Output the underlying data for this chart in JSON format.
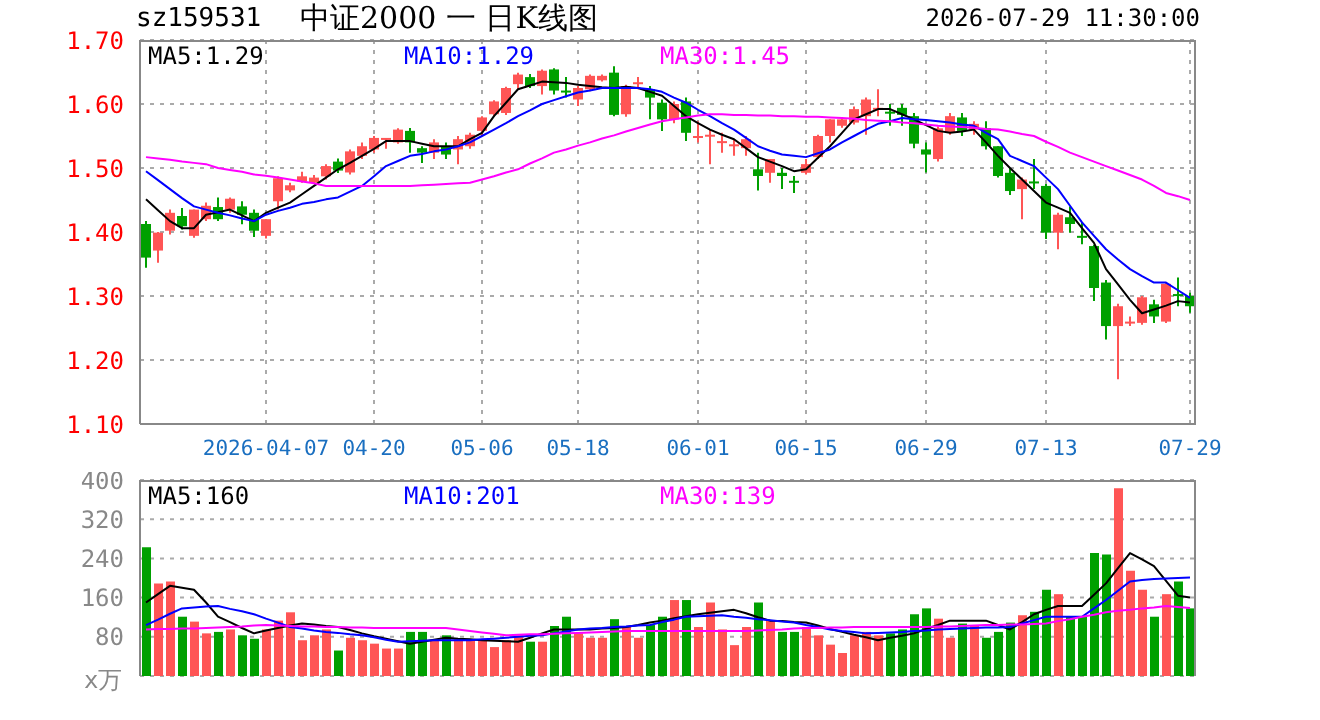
{
  "chart_data": [
    {
      "type": "candlestick",
      "title": "中证2000 一 日K线图",
      "subtitle": "sz159531",
      "annotations": [
        "2026-07-29 11:30:00"
      ],
      "categories": [
        null,
        null,
        null,
        null,
        null,
        null,
        null,
        null,
        null,
        null,
        "2026-04-07",
        null,
        null,
        null,
        null,
        null,
        null,
        null,
        null,
        "04-20",
        null,
        null,
        null,
        null,
        null,
        null,
        null,
        null,
        "05-06",
        null,
        null,
        null,
        null,
        null,
        null,
        null,
        "05-18",
        null,
        null,
        null,
        null,
        null,
        null,
        null,
        null,
        null,
        "06-01",
        null,
        null,
        null,
        null,
        null,
        null,
        null,
        null,
        "06-15",
        null,
        null,
        null,
        null,
        null,
        null,
        null,
        null,
        null,
        "06-29",
        null,
        null,
        null,
        null,
        null,
        null,
        null,
        null,
        null,
        "07-13",
        null,
        null,
        null,
        null,
        null,
        null,
        null,
        null,
        null,
        null,
        null,
        "07-29"
      ],
      "ohlc": [
        [
          1.4125,
          1.417,
          1.344,
          1.36
        ],
        [
          1.371,
          1.4,
          1.352,
          1.399
        ],
        [
          1.402,
          1.435,
          1.396,
          1.43
        ],
        [
          1.425,
          1.4375,
          1.404,
          1.409
        ],
        [
          1.394,
          1.435,
          1.391,
          1.435
        ],
        [
          1.42,
          1.446,
          1.417,
          1.441
        ],
        [
          1.439,
          1.454,
          1.417,
          1.42
        ],
        [
          1.435,
          1.454,
          1.43,
          1.452
        ],
        [
          1.44,
          1.448,
          1.412,
          1.427
        ],
        [
          1.43,
          1.435,
          1.392,
          1.402
        ],
        [
          1.394,
          1.42,
          1.39,
          1.42
        ],
        [
          1.448,
          1.487,
          1.435,
          1.484
        ],
        [
          1.465,
          1.477,
          1.462,
          1.473
        ],
        [
          1.479,
          1.494,
          1.477,
          1.487
        ],
        [
          1.477,
          1.489,
          1.475,
          1.485
        ],
        [
          1.487,
          1.506,
          1.482,
          1.503
        ],
        [
          1.51,
          1.515,
          1.492,
          1.496
        ],
        [
          1.493,
          1.529,
          1.49,
          1.526
        ],
        [
          1.519,
          1.54,
          1.514,
          1.534
        ],
        [
          1.529,
          1.55,
          1.524,
          1.547
        ],
        [
          1.545,
          1.547,
          1.53,
          1.547
        ],
        [
          1.54,
          1.562,
          1.538,
          1.56
        ],
        [
          1.558,
          1.5625,
          1.524,
          1.54
        ],
        [
          1.531,
          1.534,
          1.508,
          1.524
        ],
        [
          1.524,
          1.545,
          1.514,
          1.54
        ],
        [
          1.534,
          1.54,
          1.514,
          1.521
        ],
        [
          1.529,
          1.55,
          1.506,
          1.545
        ],
        [
          1.534,
          1.555,
          1.53,
          1.552
        ],
        [
          1.558,
          1.581,
          1.55,
          1.579
        ],
        [
          1.584,
          1.606,
          1.58,
          1.604
        ],
        [
          1.586,
          1.627,
          1.583,
          1.625
        ],
        [
          1.631,
          1.649,
          1.623,
          1.646
        ],
        [
          1.642,
          1.647,
          1.625,
          1.628
        ],
        [
          1.628,
          1.654,
          1.615,
          1.652
        ],
        [
          1.654,
          1.656,
          1.615,
          1.621
        ],
        [
          1.621,
          1.642,
          1.61,
          1.618
        ],
        [
          1.607,
          1.628,
          1.597,
          1.625
        ],
        [
          1.623,
          1.646,
          1.62,
          1.644
        ],
        [
          1.637,
          1.646,
          1.635,
          1.644
        ],
        [
          1.649,
          1.659,
          1.581,
          1.583
        ],
        [
          1.584,
          1.63,
          1.58,
          1.628
        ],
        [
          1.632,
          1.642,
          1.623,
          1.634
        ],
        [
          1.623,
          1.628,
          1.576,
          1.61
        ],
        [
          1.602,
          1.607,
          1.558,
          1.576
        ],
        [
          1.576,
          1.604,
          1.57,
          1.6
        ],
        [
          1.604,
          1.61,
          1.542,
          1.555
        ],
        [
          1.548,
          1.573,
          1.54,
          1.55
        ],
        [
          1.55,
          1.56,
          1.506,
          1.552
        ],
        [
          1.54,
          1.555,
          1.524,
          1.542
        ],
        [
          1.534,
          1.545,
          1.519,
          1.537
        ],
        [
          1.531,
          1.55,
          1.519,
          1.545
        ],
        [
          1.498,
          1.524,
          1.465,
          1.4875
        ],
        [
          1.4925,
          1.514,
          1.477,
          1.514
        ],
        [
          1.4925,
          1.5,
          1.467,
          1.4875
        ],
        [
          1.48,
          1.4875,
          1.461,
          1.477
        ],
        [
          1.4925,
          1.514,
          1.49,
          1.506
        ],
        [
          1.517,
          1.552,
          1.514,
          1.55
        ],
        [
          1.55,
          1.576,
          1.54,
          1.576
        ],
        [
          1.566,
          1.578,
          1.563,
          1.576
        ],
        [
          1.571,
          1.596,
          1.568,
          1.592
        ],
        [
          1.581,
          1.61,
          1.552,
          1.607
        ],
        [
          1.592,
          1.623,
          1.581,
          1.594
        ],
        [
          1.588,
          1.6,
          1.566,
          1.586
        ],
        [
          1.594,
          1.6,
          1.566,
          1.583
        ],
        [
          1.581,
          1.586,
          1.531,
          1.538
        ],
        [
          1.529,
          1.54,
          1.493,
          1.521
        ],
        [
          1.514,
          1.565,
          1.51,
          1.562
        ],
        [
          1.555,
          1.586,
          1.552,
          1.581
        ],
        [
          1.579,
          1.586,
          1.55,
          1.558
        ],
        [
          1.56,
          1.573,
          1.552,
          1.569
        ],
        [
          1.562,
          1.573,
          1.529,
          1.534
        ],
        [
          1.534,
          1.534,
          1.485,
          1.4875
        ],
        [
          1.4925,
          1.5,
          1.458,
          1.464
        ],
        [
          1.467,
          1.485,
          1.42,
          1.482
        ],
        [
          1.479,
          1.514,
          1.467,
          1.477
        ],
        [
          1.472,
          1.475,
          1.389,
          1.399
        ],
        [
          1.399,
          1.43,
          1.373,
          1.427
        ],
        [
          1.423,
          1.44,
          1.399,
          1.4125
        ],
        [
          1.394,
          1.414,
          1.381,
          1.392
        ],
        [
          1.378,
          1.38,
          1.292,
          1.3125
        ],
        [
          1.321,
          1.325,
          1.232,
          1.253
        ],
        [
          1.253,
          1.288,
          1.17,
          1.284
        ],
        [
          1.258,
          1.268,
          1.253,
          1.26
        ],
        [
          1.258,
          1.3,
          1.255,
          1.298
        ],
        [
          1.287,
          1.294,
          1.258,
          1.268
        ],
        [
          1.26,
          1.321,
          1.258,
          1.319
        ],
        [
          1.303,
          1.329,
          1.284,
          1.302
        ],
        [
          1.3,
          1.305,
          1.274,
          1.284
        ]
      ],
      "colors": [
        "#00a000",
        "#ff5555",
        "#ff5555",
        "#00a000",
        "#ff5555",
        "#ff5555",
        "#00a000",
        "#ff5555",
        "#00a000",
        "#00a000",
        "#ff5555",
        "#ff5555",
        "#ff5555",
        "#ff5555",
        "#ff5555",
        "#ff5555",
        "#00a000",
        "#ff5555",
        "#ff5555",
        "#ff5555",
        "#ff5555",
        "#ff5555",
        "#00a000",
        "#00a000",
        "#ff5555",
        "#00a000",
        "#ff5555",
        "#ff5555",
        "#ff5555",
        "#ff5555",
        "#ff5555",
        "#ff5555",
        "#00a000",
        "#ff5555",
        "#00a000",
        "#00a000",
        "#ff5555",
        "#ff5555",
        "#ff5555",
        "#00a000",
        "#ff5555",
        "#ff5555",
        "#00a000",
        "#00a000",
        "#ff5555",
        "#00a000",
        "#ff5555",
        "#ff5555",
        "#ff5555",
        "#ff5555",
        "#ff5555",
        "#00a000",
        "#ff5555",
        "#00a000",
        "#00a000",
        "#ff5555",
        "#ff5555",
        "#ff5555",
        "#ff5555",
        "#ff5555",
        "#ff5555",
        "#ff5555",
        "#00a000",
        "#00a000",
        "#00a000",
        "#00a000",
        "#ff5555",
        "#ff5555",
        "#00a000",
        "#ff5555",
        "#00a000",
        "#00a000",
        "#00a000",
        "#ff5555",
        "#00a000",
        "#00a000",
        "#ff5555",
        "#00a000",
        "#00a000",
        "#00a000",
        "#00a000",
        "#ff5555",
        "#ff5555",
        "#ff5555",
        "#00a000",
        "#ff5555",
        "#00a000",
        "#00a000"
      ],
      "series": [
        {
          "name": "MA5:1.29",
          "type": "line",
          "color": "#000000",
          "values": [
            1.451,
            1.434,
            1.417,
            1.406,
            1.406,
            1.427,
            1.431,
            1.435,
            1.426,
            1.417,
            1.43,
            1.438,
            1.446,
            1.459,
            1.472,
            1.485,
            1.498,
            1.508,
            1.519,
            1.53,
            1.542,
            1.542,
            1.542,
            1.538,
            1.534,
            1.534,
            1.534,
            1.545,
            1.555,
            1.581,
            1.602,
            1.623,
            1.629,
            1.635,
            1.634,
            1.633,
            1.63,
            1.628,
            1.626,
            1.625,
            1.627,
            1.625,
            1.619,
            1.613,
            1.597,
            1.581,
            1.57,
            1.56,
            1.552,
            1.545,
            1.531,
            1.517,
            1.51,
            1.503,
            1.495,
            1.498,
            1.516,
            1.534,
            1.555,
            1.576,
            1.584,
            1.592,
            1.592,
            1.584,
            1.576,
            1.567,
            1.558,
            1.555,
            1.557,
            1.56,
            1.54,
            1.519,
            1.5,
            1.482,
            1.464,
            1.446,
            1.438,
            1.43,
            1.406,
            1.383,
            1.342,
            1.318,
            1.294,
            1.273,
            1.279,
            1.285,
            1.292,
            1.29
          ]
        },
        {
          "name": "MA10:1.29",
          "type": "line",
          "color": "#0000ff",
          "values": [
            1.495,
            1.481,
            1.467,
            1.453,
            1.44,
            1.435,
            1.43,
            1.426,
            1.421,
            1.417,
            1.427,
            1.433,
            1.438,
            1.444,
            1.447,
            1.451,
            1.454,
            1.463,
            1.472,
            1.487,
            1.503,
            1.511,
            1.519,
            1.522,
            1.526,
            1.529,
            1.534,
            1.54,
            1.55,
            1.56,
            1.57,
            1.581,
            1.59,
            1.6,
            1.606,
            1.612,
            1.618,
            1.621,
            1.625,
            1.625,
            1.625,
            1.625,
            1.623,
            1.619,
            1.61,
            1.602,
            1.591,
            1.581,
            1.57,
            1.56,
            1.547,
            1.534,
            1.527,
            1.521,
            1.519,
            1.517,
            1.523,
            1.529,
            1.54,
            1.55,
            1.56,
            1.569,
            1.573,
            1.578,
            1.576,
            1.575,
            1.573,
            1.571,
            1.568,
            1.566,
            1.555,
            1.545,
            1.519,
            1.511,
            1.503,
            1.485,
            1.467,
            1.441,
            1.415,
            1.394,
            1.373,
            1.357,
            1.342,
            1.331,
            1.321,
            1.321,
            1.309,
            1.297
          ]
        },
        {
          "name": "MA30:1.45",
          "type": "line",
          "color": "#ff00ff",
          "values": [
            1.517,
            1.515,
            1.513,
            1.51,
            1.508,
            1.506,
            1.5,
            1.497,
            1.494,
            1.49,
            1.488,
            1.485,
            1.482,
            1.479,
            1.476,
            1.472,
            1.472,
            1.472,
            1.472,
            1.472,
            1.472,
            1.472,
            1.472,
            1.473,
            1.474,
            1.475,
            1.476,
            1.477,
            1.482,
            1.487,
            1.493,
            1.498,
            1.507,
            1.515,
            1.524,
            1.529,
            1.535,
            1.54,
            1.546,
            1.551,
            1.557,
            1.5625,
            1.568,
            1.573,
            1.576,
            1.579,
            1.582,
            1.584,
            1.584,
            1.583,
            1.583,
            1.582,
            1.582,
            1.581,
            1.581,
            1.58,
            1.58,
            1.579,
            1.578,
            1.577,
            1.575,
            1.574,
            1.573,
            1.571,
            1.57,
            1.568,
            1.566,
            1.565,
            1.564,
            1.563,
            1.561,
            1.56,
            1.557,
            1.553,
            1.55,
            1.541,
            1.533,
            1.524,
            1.517,
            1.51,
            1.503,
            1.496,
            1.489,
            1.482,
            1.472,
            1.461,
            1.456,
            1.45
          ]
        }
      ],
      "ylim": [
        1.1,
        1.7
      ],
      "yticks": [
        {
          "value": 1.1,
          "label": "1.10"
        },
        {
          "value": 1.2,
          "label": "1.20"
        },
        {
          "value": 1.3,
          "label": "1.30"
        },
        {
          "value": 1.4,
          "label": "1.40"
        },
        {
          "value": 1.5,
          "label": "1.50"
        },
        {
          "value": 1.6,
          "label": "1.60"
        },
        {
          "value": 1.7,
          "label": "1.70"
        }
      ],
      "grid": true,
      "legend": "top left",
      "marker": "none"
    },
    {
      "type": "bar",
      "ylabel": "x万",
      "categories": [
        null,
        null,
        null,
        null,
        null,
        null,
        null,
        null,
        null,
        null,
        null,
        null,
        null,
        null,
        null,
        null,
        null,
        null,
        null,
        null,
        null,
        null,
        null,
        null,
        null,
        null,
        null,
        null,
        null,
        null,
        null,
        null,
        null,
        null,
        null,
        null,
        null,
        null,
        null,
        null,
        null,
        null,
        null,
        null,
        null,
        null,
        null,
        null,
        null,
        null,
        null,
        null,
        null,
        null,
        null,
        null,
        null,
        null,
        null,
        null,
        null,
        null,
        null,
        null,
        null,
        null,
        null,
        null,
        null,
        null,
        null,
        null,
        null,
        null,
        null,
        null,
        null,
        null,
        null,
        null,
        null,
        null,
        null,
        null,
        null,
        null,
        null,
        null
      ],
      "series": [
        {
          "type": "bar",
          "values": [
            263,
            189,
            193,
            121,
            111,
            87,
            90,
            95,
            83,
            76,
            95,
            113,
            130,
            73,
            83,
            95,
            52,
            78,
            73,
            66,
            56,
            56,
            90,
            90,
            73,
            83,
            76,
            73,
            73,
            59,
            73,
            83,
            70,
            70,
            102,
            121,
            87,
            78,
            78,
            116,
            100,
            78,
            104,
            121,
            155,
            155,
            100,
            150,
            95,
            63,
            100,
            150,
            113,
            90,
            90,
            100,
            83,
            64,
            47,
            83,
            90,
            83,
            87,
            95,
            126,
            138,
            117,
            78,
            107,
            104,
            78,
            90,
            109,
            124,
            131,
            176,
            167,
            121,
            121,
            251,
            248,
            383,
            215,
            176,
            121,
            167,
            193,
            138
          ],
          "colors": [
            "#00a000",
            "#ff5555",
            "#ff5555",
            "#00a000",
            "#ff5555",
            "#ff5555",
            "#00a000",
            "#ff5555",
            "#00a000",
            "#00a000",
            "#ff5555",
            "#ff5555",
            "#ff5555",
            "#ff5555",
            "#ff5555",
            "#ff5555",
            "#00a000",
            "#ff5555",
            "#ff5555",
            "#ff5555",
            "#ff5555",
            "#ff5555",
            "#00a000",
            "#00a000",
            "#ff5555",
            "#00a000",
            "#ff5555",
            "#ff5555",
            "#ff5555",
            "#ff5555",
            "#ff5555",
            "#ff5555",
            "#00a000",
            "#ff5555",
            "#00a000",
            "#00a000",
            "#ff5555",
            "#ff5555",
            "#ff5555",
            "#00a000",
            "#ff5555",
            "#ff5555",
            "#00a000",
            "#00a000",
            "#ff5555",
            "#00a000",
            "#ff5555",
            "#ff5555",
            "#ff5555",
            "#ff5555",
            "#ff5555",
            "#00a000",
            "#ff5555",
            "#00a000",
            "#00a000",
            "#ff5555",
            "#ff5555",
            "#ff5555",
            "#ff5555",
            "#ff5555",
            "#ff5555",
            "#ff5555",
            "#00a000",
            "#00a000",
            "#00a000",
            "#00a000",
            "#ff5555",
            "#ff5555",
            "#00a000",
            "#ff5555",
            "#00a000",
            "#00a000",
            "#00a000",
            "#ff5555",
            "#00a000",
            "#00a000",
            "#ff5555",
            "#00a000",
            "#00a000",
            "#00a000",
            "#00a000",
            "#ff5555",
            "#ff5555",
            "#ff5555",
            "#00a000",
            "#ff5555",
            "#00a000",
            "#00a000"
          ]
        },
        {
          "name": "MA5:160",
          "type": "line",
          "color": "#000000",
          "values": [
            150,
            167,
            184,
            180,
            176,
            150,
            121,
            110,
            98,
            87,
            93,
            98,
            103,
            107,
            105,
            102,
            100,
            94,
            87,
            81,
            76,
            71,
            66,
            70,
            74,
            78,
            76,
            75,
            73,
            72,
            71,
            70,
            78,
            87,
            95,
            95,
            95,
            95,
            97,
            98,
            100,
            104,
            109,
            113,
            118,
            122,
            126,
            129,
            132,
            135,
            128,
            120,
            113,
            112,
            110,
            109,
            103,
            96,
            90,
            84,
            79,
            73,
            78,
            82,
            87,
            96,
            104,
            113,
            113,
            113,
            113,
            104,
            95,
            110,
            126,
            135,
            143,
            143,
            143,
            166,
            189,
            220,
            251,
            238,
            224,
            194,
            164,
            160
          ]
        },
        {
          "name": "MA10:201",
          "type": "line",
          "color": "#0000ff",
          "values": [
            104,
            115,
            127,
            138,
            140,
            142,
            143,
            137,
            132,
            126,
            117,
            109,
            100,
            97,
            93,
            90,
            88,
            85,
            83,
            79,
            74,
            70,
            71,
            72,
            73,
            73,
            73,
            73,
            75,
            76,
            78,
            80,
            82,
            83,
            87,
            91,
            95,
            97,
            98,
            100,
            101,
            103,
            104,
            110,
            115,
            121,
            122,
            123,
            124,
            121,
            119,
            116,
            114,
            111,
            109,
            104,
            100,
            95,
            92,
            90,
            87,
            88,
            89,
            90,
            92,
            93,
            95,
            96,
            97,
            98,
            99,
            99,
            100,
            107,
            114,
            121,
            121,
            121,
            121,
            138,
            155,
            174,
            193,
            196,
            198,
            199,
            200,
            201
          ]
        },
        {
          "name": "MA30:139",
          "type": "line",
          "color": "#ff00ff",
          "values": [
            95,
            96,
            96,
            97,
            97,
            98,
            99,
            100,
            101,
            103,
            104,
            103,
            102,
            101,
            101,
            100,
            100,
            99,
            99,
            98,
            98,
            98,
            98,
            98,
            98,
            98,
            95,
            92,
            89,
            86,
            83,
            84,
            85,
            85,
            86,
            87,
            88,
            89,
            90,
            91,
            92,
            92,
            92,
            92,
            92,
            92,
            92,
            92,
            92,
            92,
            92,
            93,
            94,
            95,
            97,
            98,
            98,
            99,
            99,
            100,
            100,
            100,
            100,
            100,
            100,
            100,
            101,
            101,
            102,
            103,
            104,
            104,
            105,
            105,
            106,
            107,
            112,
            116,
            121,
            125,
            130,
            133,
            135,
            138,
            140,
            143,
            141,
            139
          ]
        }
      ],
      "ylim": [
        0,
        400
      ],
      "yticks": [
        80,
        160,
        240,
        320,
        400
      ],
      "grid": "y",
      "legend": "top left",
      "marker": "none"
    }
  ]
}
